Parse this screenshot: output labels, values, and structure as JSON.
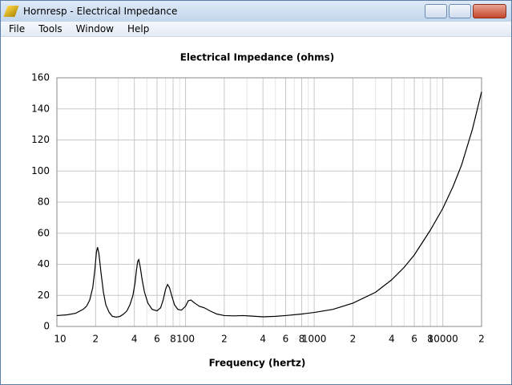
{
  "window": {
    "title": "Hornresp - Electrical Impedance"
  },
  "menu": [
    "File",
    "Tools",
    "Window",
    "Help"
  ],
  "chart_data": {
    "type": "line",
    "title": "Electrical Impedance (ohms)",
    "x_label": "Frequency (hertz)",
    "log_x": true,
    "grid": true,
    "color": "#000000",
    "xlim": [
      10,
      20000
    ],
    "ylim": [
      0,
      160
    ],
    "yticks": [
      0,
      20,
      40,
      60,
      80,
      100,
      120,
      140,
      160
    ],
    "xticks": [
      10,
      {
        "value": 20,
        "label": "2"
      },
      {
        "value": 40,
        "label": "4"
      },
      {
        "value": 60,
        "label": "6"
      },
      {
        "value": 80,
        "label": "8"
      },
      100,
      {
        "value": 200,
        "label": "2"
      },
      {
        "value": 400,
        "label": "4"
      },
      {
        "value": 600,
        "label": "6"
      },
      {
        "value": 800,
        "label": "8"
      },
      1000,
      {
        "value": 2000,
        "label": "2"
      },
      {
        "value": 4000,
        "label": "4"
      },
      {
        "value": 6000,
        "label": "6"
      },
      {
        "value": 8000,
        "label": "8"
      },
      10000,
      {
        "value": 20000,
        "label": "2"
      }
    ],
    "x_minor_grid": [
      30,
      50,
      70,
      90,
      300,
      500,
      700,
      900,
      3000,
      5000,
      7000,
      9000
    ],
    "x": [
      10,
      12,
      14,
      16,
      17,
      18,
      19,
      19.7,
      20.3,
      20.7,
      21.2,
      22,
      23,
      24,
      25.5,
      27,
      29,
      31,
      33,
      35,
      37,
      39,
      40.5,
      41.5,
      42.5,
      43.3,
      44.5,
      46,
      48,
      51,
      55,
      60,
      64,
      67,
      70,
      72.5,
      75,
      78,
      82,
      87,
      93,
      100,
      105,
      110,
      118,
      128,
      140,
      155,
      175,
      200,
      240,
      280,
      320,
      400,
      500,
      600,
      800,
      1000,
      1400,
      2000,
      3000,
      4000,
      5000,
      6000,
      8000,
      10000,
      12000,
      14000,
      17000,
      20000
    ],
    "values": [
      7,
      7.5,
      8.5,
      11,
      13,
      17,
      25,
      36,
      48,
      51,
      47,
      35,
      22,
      14,
      9,
      6.5,
      6,
      6.5,
      8,
      10,
      14,
      20,
      28,
      36,
      42,
      43,
      38,
      30,
      22,
      15,
      11,
      10,
      12,
      17,
      24,
      27,
      25,
      20,
      14,
      11,
      10.5,
      13,
      16.5,
      17,
      15,
      13,
      12,
      10,
      8,
      7,
      6.8,
      7,
      6.7,
      6.2,
      6.5,
      7,
      8,
      9,
      11,
      15,
      22,
      30,
      38,
      46,
      62,
      76,
      90,
      104,
      127,
      151
    ]
  }
}
